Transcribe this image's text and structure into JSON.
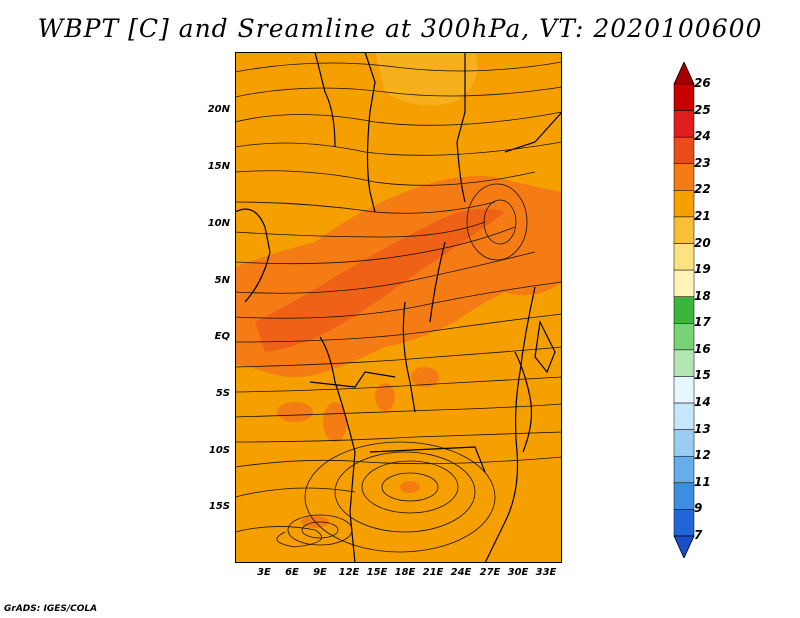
{
  "title": "WBPT [C] and Sreamline at 300hPa, VT: 2020100600",
  "credit": "GrADS: IGES/COLA",
  "map": {
    "lat_labels": [
      "20N",
      "15N",
      "10N",
      "5N",
      "EQ",
      "5S",
      "10S",
      "15S"
    ],
    "lon_labels": [
      "3E",
      "6E",
      "9E",
      "12E",
      "15E",
      "18E",
      "21E",
      "24E",
      "27E",
      "30E",
      "33E"
    ],
    "field_colors": {
      "background": "#f5a000",
      "warm": "#f57b14",
      "hot": "#ea4d1a",
      "cool": "#f8c038"
    }
  },
  "colorbar": {
    "labels": [
      "26",
      "25",
      "24",
      "23",
      "22",
      "21",
      "20",
      "19",
      "18",
      "17",
      "16",
      "15",
      "14",
      "13",
      "12",
      "11",
      "9",
      "7"
    ],
    "colors": [
      "#a40000",
      "#c80000",
      "#e01e1e",
      "#ea4d1a",
      "#f57b14",
      "#f5a000",
      "#f8c038",
      "#fde27f",
      "#fff5b8",
      "#3cb53c",
      "#78d278",
      "#b4e6b4",
      "#e6f7ff",
      "#c6e6fa",
      "#99cdf2",
      "#66aee9",
      "#3d8ee0",
      "#2066d8",
      "#1a4fc8"
    ]
  }
}
